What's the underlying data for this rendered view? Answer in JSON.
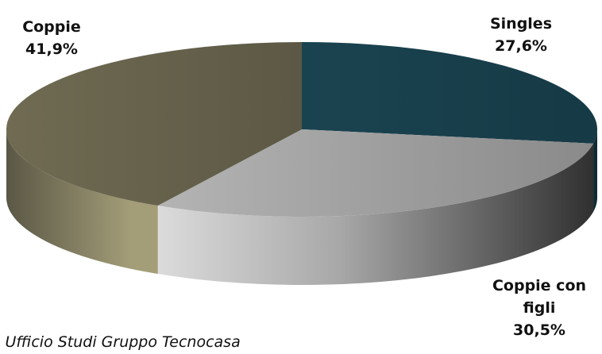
{
  "chart_data": {
    "type": "pie",
    "style": "3d",
    "categories": [
      "Singles",
      "Coppie con figli",
      "Coppie"
    ],
    "values": [
      27.6,
      30.5,
      41.9
    ],
    "value_labels": [
      "27,6%",
      "30,5%",
      "41,9%"
    ],
    "colors": [
      "#1c4452",
      "#9a9a9a",
      "#6f6a52"
    ]
  },
  "labels": {
    "singles": {
      "name": "Singles",
      "value": "27,6%"
    },
    "coppie": {
      "name": "Coppie",
      "value": "41,9%"
    },
    "coppie_con_figli": {
      "name_line1": "Coppie con",
      "name_line2": "figli",
      "value": "30,5%"
    }
  },
  "source_text": ": Ufficio Studi Gruppo Tecnocasa"
}
